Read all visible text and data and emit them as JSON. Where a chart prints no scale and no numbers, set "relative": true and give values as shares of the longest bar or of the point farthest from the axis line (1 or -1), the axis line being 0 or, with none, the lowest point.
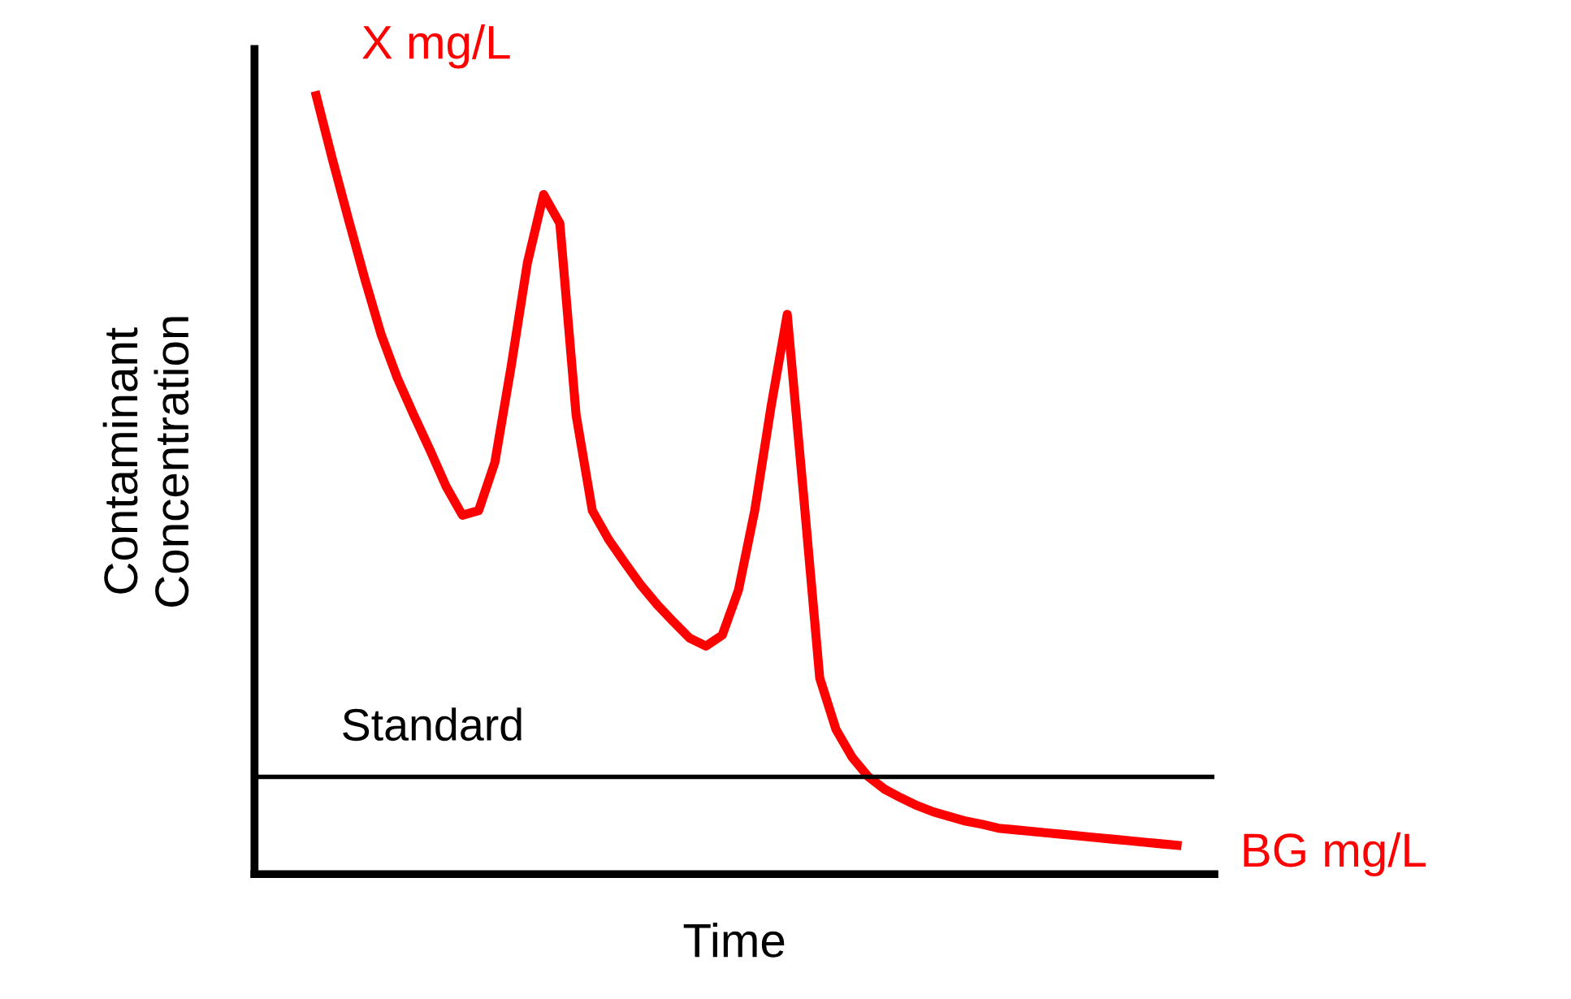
{
  "chart_data": {
    "type": "line",
    "relative": true,
    "xlabel": "Time",
    "ylabel": "Contaminant\nConcentration",
    "categories": [
      null,
      null,
      null,
      null,
      null,
      null,
      null,
      null,
      null,
      null,
      null,
      null,
      null,
      null,
      null,
      null,
      null,
      null,
      null,
      null,
      null,
      null,
      null,
      null,
      null,
      null,
      null,
      null,
      null,
      null,
      null,
      null,
      null,
      null,
      null,
      null,
      null,
      null,
      null,
      null,
      null,
      null,
      null,
      null,
      null,
      null,
      null,
      null,
      null,
      null,
      null,
      null,
      null,
      null
    ],
    "series": [
      {
        "color": "#ff0000",
        "values": [
          1.0,
          0.918,
          0.84,
          0.764,
          0.693,
          0.637,
          0.59,
          0.545,
          0.498,
          0.461,
          0.467,
          0.529,
          0.652,
          0.785,
          0.873,
          0.836,
          0.59,
          0.467,
          0.43,
          0.4,
          0.371,
          0.346,
          0.324,
          0.303,
          0.293,
          0.307,
          0.365,
          0.467,
          0.6,
          0.719,
          0.488,
          0.252,
          0.186,
          0.15,
          0.125,
          0.109,
          0.098,
          0.088,
          0.08,
          0.074,
          0.068,
          0.064,
          0.059,
          0.057,
          0.055,
          0.053,
          0.051,
          0.049,
          0.047,
          0.045,
          0.043,
          0.041,
          0.039,
          0.037
        ]
      }
    ],
    "ref_lines": [
      {
        "axis": "y",
        "value": 0.125,
        "label": "Standard",
        "color": "#000000"
      }
    ],
    "annotations": [
      "X mg/L",
      "BG mg/L"
    ]
  }
}
